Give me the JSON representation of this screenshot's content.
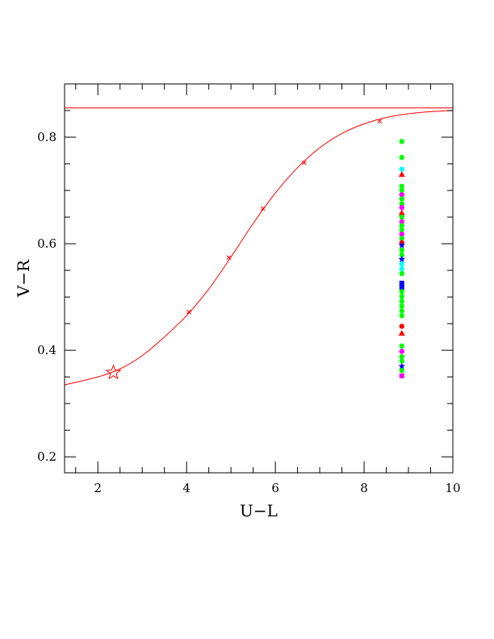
{
  "chart_data": {
    "type": "scatter",
    "title": "",
    "xlabel": "U−L",
    "ylabel": "V−R",
    "xlim": [
      1.25,
      10.0
    ],
    "ylim": [
      0.17,
      0.9
    ],
    "xticks": [
      "2",
      "4",
      "6",
      "8",
      "10"
    ],
    "yticks": [
      "0.2",
      "0.4",
      "0.6",
      "0.8"
    ],
    "xtick_values": [
      2,
      4,
      6,
      8,
      10
    ],
    "ytick_values": [
      0.2,
      0.4,
      0.6,
      0.8
    ],
    "grid": false,
    "colors": {
      "curve": "#ff0000",
      "green": "#00ff00",
      "cyan": "#00ffff",
      "magenta": "#ff00ff",
      "blue": "#0000ff",
      "red": "#ff0000"
    },
    "reference_line": {
      "y": 0.855
    },
    "curve": {
      "x": [
        1.25,
        2.0,
        2.5,
        3.0,
        3.5,
        4.0,
        4.5,
        5.0,
        5.5,
        6.0,
        6.5,
        7.0,
        7.5,
        8.0,
        8.5,
        9.0,
        9.5,
        10.0
      ],
      "y": [
        0.335,
        0.35,
        0.365,
        0.39,
        0.425,
        0.465,
        0.515,
        0.575,
        0.638,
        0.695,
        0.743,
        0.78,
        0.807,
        0.825,
        0.837,
        0.844,
        0.848,
        0.85
      ]
    },
    "curve_markers": {
      "x": [
        4.05,
        4.95,
        5.72,
        6.65,
        8.35
      ],
      "y": [
        0.472,
        0.574,
        0.666,
        0.752,
        0.83
      ]
    },
    "star_point": {
      "x": 2.35,
      "y": 0.358
    },
    "vertical_points": {
      "x": 8.85,
      "points": [
        {
          "y": 0.792,
          "color": "green",
          "marker": "circle"
        },
        {
          "y": 0.762,
          "color": "green",
          "marker": "circle"
        },
        {
          "y": 0.74,
          "color": "cyan",
          "marker": "circle"
        },
        {
          "y": 0.73,
          "color": "red",
          "marker": "triangle"
        },
        {
          "y": 0.708,
          "color": "green",
          "marker": "circle"
        },
        {
          "y": 0.7,
          "color": "green",
          "marker": "circle"
        },
        {
          "y": 0.692,
          "color": "magenta",
          "marker": "circle"
        },
        {
          "y": 0.684,
          "color": "green",
          "marker": "circle"
        },
        {
          "y": 0.675,
          "color": "green",
          "marker": "circle"
        },
        {
          "y": 0.668,
          "color": "magenta",
          "marker": "circle"
        },
        {
          "y": 0.658,
          "color": "red",
          "marker": "triangle"
        },
        {
          "y": 0.65,
          "color": "green",
          "marker": "circle"
        },
        {
          "y": 0.641,
          "color": "magenta",
          "marker": "circle"
        },
        {
          "y": 0.634,
          "color": "green",
          "marker": "circle"
        },
        {
          "y": 0.626,
          "color": "green",
          "marker": "circle"
        },
        {
          "y": 0.618,
          "color": "magenta",
          "marker": "circle"
        },
        {
          "y": 0.61,
          "color": "green",
          "marker": "circle"
        },
        {
          "y": 0.602,
          "color": "red",
          "marker": "circle"
        },
        {
          "y": 0.597,
          "color": "blue",
          "marker": "star"
        },
        {
          "y": 0.588,
          "color": "green",
          "marker": "circle"
        },
        {
          "y": 0.579,
          "color": "green",
          "marker": "circle"
        },
        {
          "y": 0.571,
          "color": "blue",
          "marker": "star"
        },
        {
          "y": 0.562,
          "color": "cyan",
          "marker": "circle"
        },
        {
          "y": 0.553,
          "color": "cyan",
          "marker": "circle"
        },
        {
          "y": 0.544,
          "color": "green",
          "marker": "circle"
        },
        {
          "y": 0.526,
          "color": "blue",
          "marker": "square"
        },
        {
          "y": 0.518,
          "color": "blue",
          "marker": "square"
        },
        {
          "y": 0.51,
          "color": "green",
          "marker": "circle"
        },
        {
          "y": 0.501,
          "color": "green",
          "marker": "circle"
        },
        {
          "y": 0.492,
          "color": "green",
          "marker": "circle"
        },
        {
          "y": 0.483,
          "color": "green",
          "marker": "circle"
        },
        {
          "y": 0.474,
          "color": "green",
          "marker": "circle"
        },
        {
          "y": 0.465,
          "color": "green",
          "marker": "circle"
        },
        {
          "y": 0.445,
          "color": "red",
          "marker": "circle"
        },
        {
          "y": 0.432,
          "color": "red",
          "marker": "triangle"
        },
        {
          "y": 0.408,
          "color": "green",
          "marker": "circle"
        },
        {
          "y": 0.398,
          "color": "magenta",
          "marker": "circle"
        },
        {
          "y": 0.388,
          "color": "green",
          "marker": "circle"
        },
        {
          "y": 0.38,
          "color": "green",
          "marker": "circle"
        },
        {
          "y": 0.37,
          "color": "blue",
          "marker": "star"
        },
        {
          "y": 0.362,
          "color": "green",
          "marker": "circle"
        },
        {
          "y": 0.352,
          "color": "magenta",
          "marker": "square"
        }
      ]
    }
  }
}
